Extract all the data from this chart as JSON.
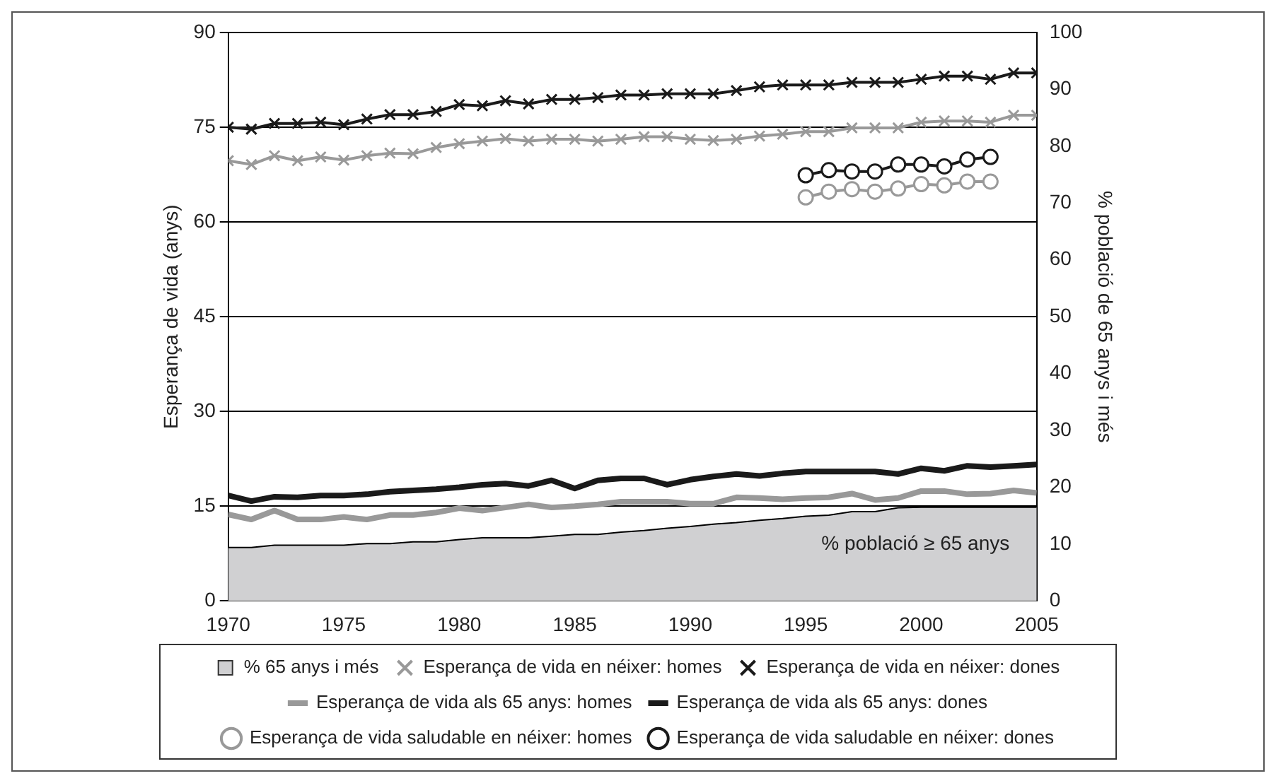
{
  "chart_data": {
    "type": "line",
    "ylabel": "Esperança de vida (anys)",
    "y2label": "% població de 65 anys i més",
    "x": [
      1970,
      1971,
      1972,
      1973,
      1974,
      1975,
      1976,
      1977,
      1978,
      1979,
      1980,
      1981,
      1982,
      1983,
      1984,
      1985,
      1986,
      1987,
      1988,
      1989,
      1990,
      1991,
      1992,
      1993,
      1994,
      1995,
      1996,
      1997,
      1998,
      1999,
      2000,
      2001,
      2002,
      2003,
      2004,
      2005
    ],
    "xlim": [
      1970,
      2005
    ],
    "xticks": [
      1970,
      1975,
      1980,
      1985,
      1990,
      1995,
      2000,
      2005
    ],
    "ylim": [
      0,
      90
    ],
    "yticks": [
      0,
      15,
      30,
      45,
      60,
      75,
      90
    ],
    "y2lim": [
      0,
      100
    ],
    "y2ticks": [
      0,
      10,
      20,
      30,
      40,
      50,
      60,
      70,
      80,
      90,
      100
    ],
    "grid": "y",
    "legend": "bottom",
    "annotations": [
      "% població ≥ 65 anys"
    ],
    "series": [
      {
        "name": "% 65 anys i més",
        "type": "area",
        "axis": "y2",
        "color": "#d0d0d2",
        "marker": "none",
        "values": [
          9.4,
          9.4,
          9.8,
          9.8,
          9.8,
          9.8,
          10.1,
          10.1,
          10.4,
          10.4,
          10.8,
          11.1,
          11.1,
          11.1,
          11.4,
          11.7,
          11.7,
          12.1,
          12.4,
          12.8,
          13.1,
          13.5,
          13.8,
          14.2,
          14.5,
          14.9,
          15.1,
          15.7,
          15.7,
          16.4,
          16.5,
          16.5,
          16.5,
          16.5,
          16.5,
          16.5
        ]
      },
      {
        "name": "Esperança de vida en néixer: homes",
        "color": "#999999",
        "marker": "cross",
        "values": [
          69.7,
          69.1,
          70.5,
          69.7,
          70.3,
          69.8,
          70.5,
          70.9,
          70.8,
          71.8,
          72.4,
          72.8,
          73.2,
          72.8,
          73.1,
          73.1,
          72.8,
          73.1,
          73.5,
          73.5,
          73.1,
          72.9,
          73.1,
          73.6,
          73.9,
          74.3,
          74.3,
          74.9,
          74.9,
          74.9,
          75.8,
          76.0,
          76.0,
          75.8,
          76.9,
          76.9
        ]
      },
      {
        "name": "Esperança de vida en néixer: dones",
        "color": "#1a1a1a",
        "marker": "cross",
        "values": [
          75.0,
          74.7,
          75.6,
          75.6,
          75.8,
          75.4,
          76.3,
          77.0,
          77.0,
          77.5,
          78.6,
          78.4,
          79.2,
          78.7,
          79.4,
          79.4,
          79.7,
          80.1,
          80.1,
          80.3,
          80.3,
          80.3,
          80.8,
          81.4,
          81.7,
          81.7,
          81.7,
          82.1,
          82.1,
          82.1,
          82.6,
          83.1,
          83.1,
          82.6,
          83.6,
          83.6
        ]
      },
      {
        "name": "Esperança de vida als 65 anys: homes",
        "color": "#999999",
        "marker": "none",
        "values": [
          13.7,
          12.9,
          14.3,
          12.9,
          12.9,
          13.3,
          12.9,
          13.6,
          13.6,
          14.0,
          14.7,
          14.3,
          14.8,
          15.3,
          14.8,
          15.0,
          15.3,
          15.7,
          15.7,
          15.7,
          15.4,
          15.4,
          16.4,
          16.3,
          16.1,
          16.3,
          16.4,
          17.0,
          16.0,
          16.3,
          17.4,
          17.4,
          16.9,
          17.0,
          17.5,
          17.1
        ]
      },
      {
        "name": "Esperança de vida als 65 anys: dones",
        "color": "#1a1a1a",
        "marker": "none",
        "values": [
          16.7,
          15.8,
          16.5,
          16.4,
          16.7,
          16.7,
          16.9,
          17.3,
          17.5,
          17.7,
          18.0,
          18.4,
          18.6,
          18.2,
          19.1,
          17.8,
          19.1,
          19.4,
          19.4,
          18.4,
          19.2,
          19.7,
          20.1,
          19.8,
          20.2,
          20.5,
          20.5,
          20.5,
          20.5,
          20.1,
          21.0,
          20.6,
          21.4,
          21.2,
          21.4,
          21.6
        ]
      },
      {
        "name": "Esperança de vida saludable en néixer: homes",
        "color": "#999999",
        "marker": "circle",
        "x": [
          1995,
          1996,
          1997,
          1998,
          1999,
          2000,
          2001,
          2002,
          2003
        ],
        "values": [
          63.9,
          64.8,
          65.2,
          64.8,
          65.3,
          66.0,
          65.8,
          66.4,
          66.4
        ]
      },
      {
        "name": "Esperança de vida saludable en néixer: dones",
        "color": "#1a1a1a",
        "marker": "circle",
        "x": [
          1995,
          1996,
          1997,
          1998,
          1999,
          2000,
          2001,
          2002,
          2003
        ],
        "values": [
          67.4,
          68.2,
          68.0,
          68.0,
          69.1,
          69.1,
          68.8,
          69.9,
          70.3
        ]
      }
    ]
  }
}
